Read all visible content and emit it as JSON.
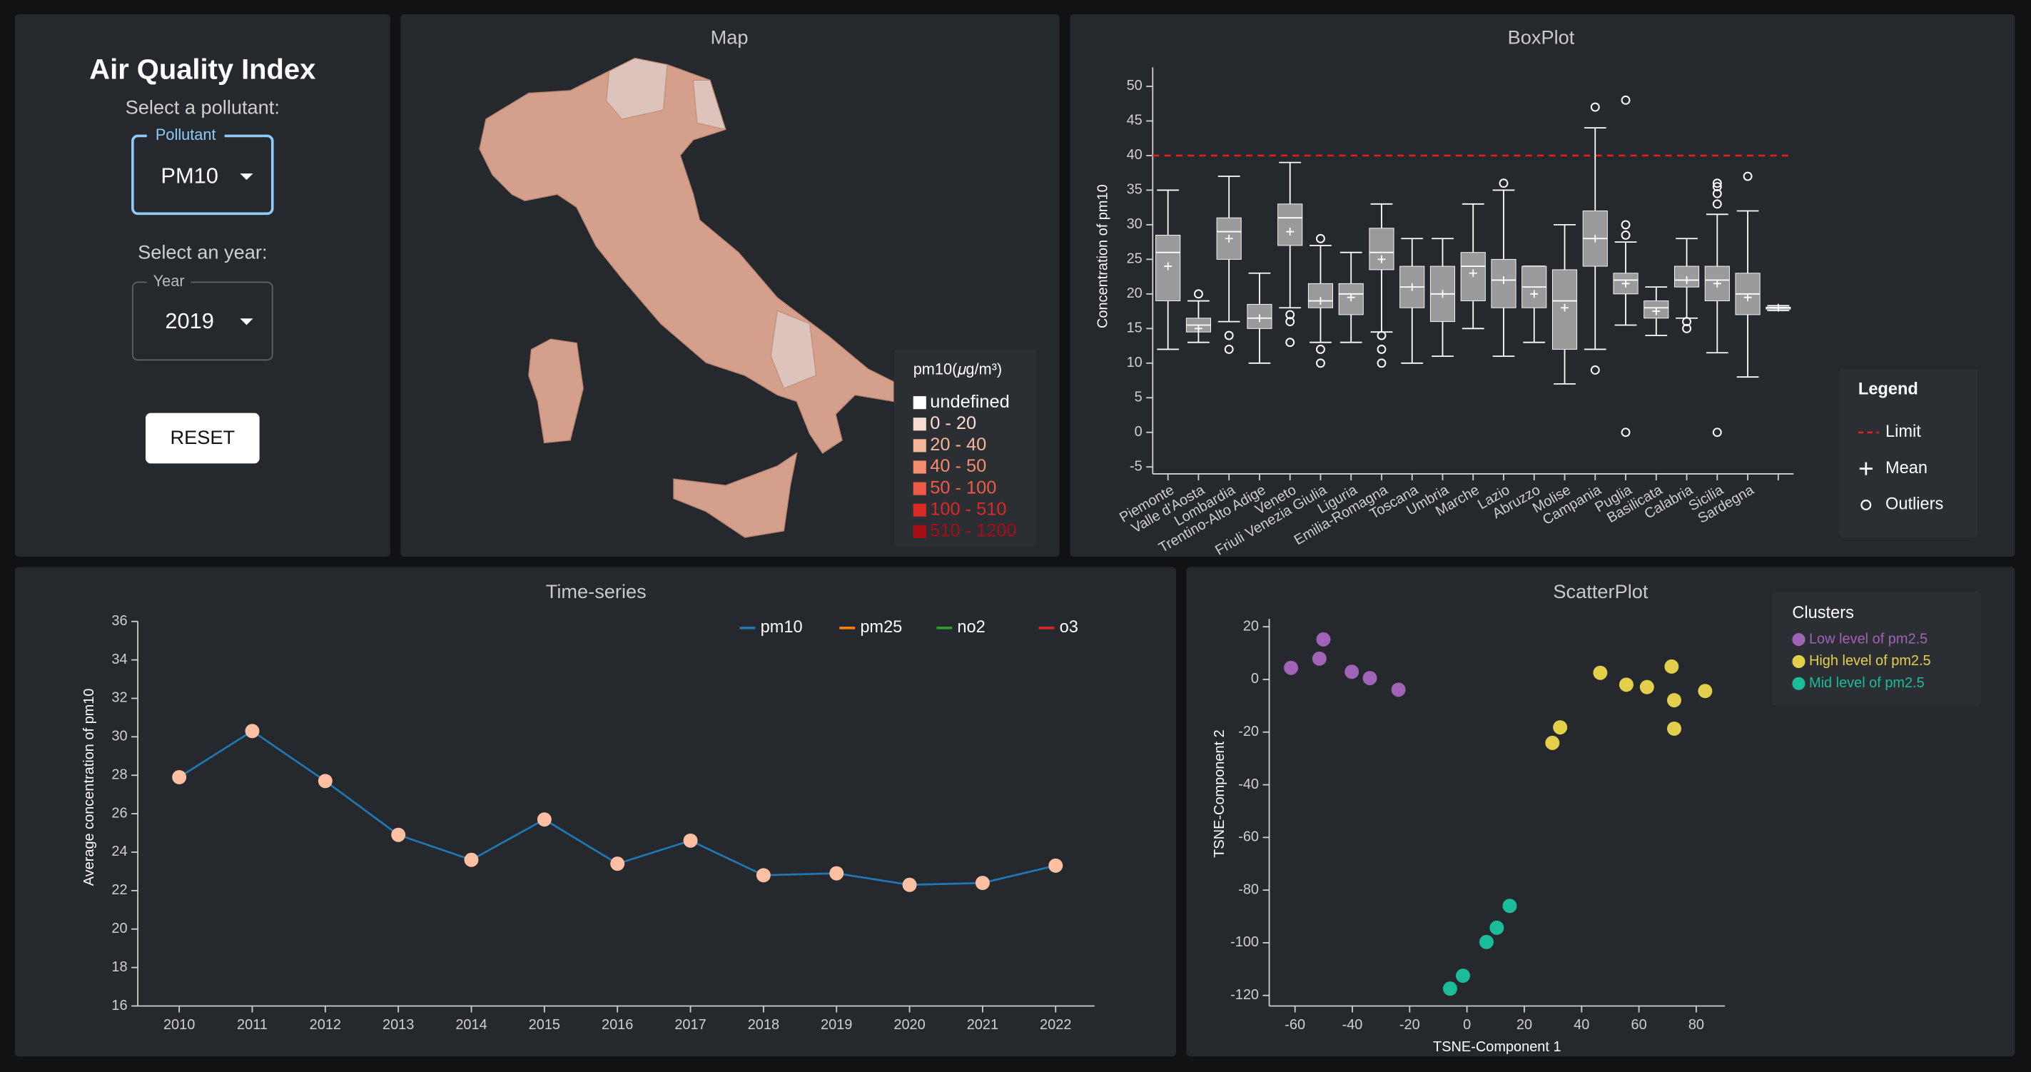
{
  "sidebar": {
    "title": "Air Quality Index",
    "pollutant_prompt": "Select a pollutant:",
    "pollutant_label": "Pollutant",
    "pollutant_value": "PM10",
    "year_prompt": "Select an year:",
    "year_label": "Year",
    "year_value": "2019",
    "reset": "RESET"
  },
  "map": {
    "title": "Map",
    "legend": {
      "title": "pm10(𝜇g/m³)",
      "items": [
        {
          "label": "undefined",
          "color": "#ffffff"
        },
        {
          "label": "0 - 20",
          "color": "#fbdcd0"
        },
        {
          "label": "20 - 40",
          "color": "#f7b59a"
        },
        {
          "label": "40 - 50",
          "color": "#f58c6e"
        },
        {
          "label": "50 - 100",
          "color": "#ef5b45"
        },
        {
          "label": "100 - 510",
          "color": "#d92a24"
        },
        {
          "label": "510 - 1200",
          "color": "#a50f15"
        }
      ]
    }
  },
  "chart_data": [
    {
      "type": "box",
      "title": "BoxPlot",
      "y_label": "Concentration of pm10",
      "ylim": [
        -6,
        52
      ],
      "yticks": [
        -5,
        0,
        5,
        10,
        15,
        20,
        25,
        30,
        35,
        40,
        45,
        50
      ],
      "limit": 40,
      "limit_color": "#e02020",
      "color": "#9a9a9a",
      "legend": {
        "title": "Legend",
        "limit": "Limit",
        "mean": "Mean",
        "outliers": "Outliers"
      },
      "categories": [
        "Piemonte",
        "Valle d'Aosta",
        "Lombardia",
        "Trentino-Alto Adige",
        "Veneto",
        "Friuli Venezia Giulia",
        "Liguria",
        "Emilia-Romagna",
        "Toscana",
        "Umbria",
        "Marche",
        "Lazio",
        "Abruzzo",
        "Molise",
        "Campania",
        "Puglia",
        "Basilicata",
        "Calabria",
        "Sicilia",
        "Sardegna",
        null
      ],
      "boxes": [
        {
          "min": 12,
          "q1": 19,
          "median": 26,
          "q3": 28.5,
          "max": 35,
          "mean": 24,
          "outliers": []
        },
        {
          "min": 13,
          "q1": 14.5,
          "median": 15.5,
          "q3": 16.5,
          "max": 19,
          "mean": 15,
          "outliers": [
            20
          ]
        },
        {
          "min": 16,
          "q1": 25,
          "median": 29,
          "q3": 31,
          "max": 37,
          "mean": 28,
          "outliers": [
            12,
            14
          ]
        },
        {
          "min": 10,
          "q1": 15,
          "median": 16.5,
          "q3": 18.5,
          "max": 23,
          "mean": 16.5,
          "outliers": []
        },
        {
          "min": 18,
          "q1": 27,
          "median": 31,
          "q3": 33,
          "max": 39,
          "mean": 29,
          "outliers": [
            13,
            16,
            17
          ]
        },
        {
          "min": 13,
          "q1": 18,
          "median": 19,
          "q3": 21.5,
          "max": 27,
          "mean": 19,
          "outliers": [
            10,
            12,
            28
          ]
        },
        {
          "min": 13,
          "q1": 17,
          "median": 20,
          "q3": 21.5,
          "max": 26,
          "mean": 19.5,
          "outliers": []
        },
        {
          "min": 14.5,
          "q1": 23.5,
          "median": 26,
          "q3": 29.5,
          "max": 33,
          "mean": 25,
          "outliers": [
            10,
            12,
            14
          ]
        },
        {
          "min": 10,
          "q1": 18,
          "median": 21,
          "q3": 24,
          "max": 28,
          "mean": 21,
          "outliers": []
        },
        {
          "min": 11,
          "q1": 16,
          "median": 20,
          "q3": 24,
          "max": 28,
          "mean": 20,
          "outliers": []
        },
        {
          "min": 15,
          "q1": 19,
          "median": 24,
          "q3": 26,
          "max": 33,
          "mean": 23,
          "outliers": []
        },
        {
          "min": 11,
          "q1": 18,
          "median": 22,
          "q3": 25,
          "max": 35,
          "mean": 22,
          "outliers": [
            36
          ]
        },
        {
          "min": 13,
          "q1": 18,
          "median": 21,
          "q3": 24,
          "max": 24,
          "mean": 20,
          "outliers": []
        },
        {
          "min": 7,
          "q1": 12,
          "median": 19,
          "q3": 23.5,
          "max": 30,
          "mean": 18,
          "outliers": []
        },
        {
          "min": 12,
          "q1": 24,
          "median": 28,
          "q3": 32,
          "max": 44,
          "mean": 28,
          "outliers": [
            9,
            47
          ]
        },
        {
          "min": 15.5,
          "q1": 20,
          "median": 22,
          "q3": 23,
          "max": 27.5,
          "mean": 21.5,
          "outliers": [
            0,
            28.5,
            30,
            48
          ]
        },
        {
          "min": 14,
          "q1": 16.5,
          "median": 18,
          "q3": 19,
          "max": 21,
          "mean": 17.5,
          "outliers": []
        },
        {
          "min": 16.5,
          "q1": 21,
          "median": 22,
          "q3": 24,
          "max": 28,
          "mean": 22,
          "outliers": [
            15,
            16
          ]
        },
        {
          "min": 11.5,
          "q1": 19,
          "median": 22,
          "q3": 24,
          "max": 31.5,
          "mean": 21.5,
          "outliers": [
            0,
            33,
            34.5,
            35.5,
            36
          ]
        },
        {
          "min": 8,
          "q1": 17,
          "median": 20,
          "q3": 23,
          "max": 32,
          "mean": 19.5,
          "outliers": [
            37
          ]
        },
        {
          "min": 17.6,
          "q1": 17.8,
          "median": 18,
          "q3": 18.1,
          "max": 18.3,
          "mean": 18,
          "outliers": []
        }
      ]
    },
    {
      "type": "line",
      "title": "Time-series",
      "y_label": "Average concentration of pm10",
      "ylim": [
        16,
        36
      ],
      "yticks": [
        16,
        18,
        20,
        22,
        24,
        26,
        28,
        30,
        32,
        34,
        36
      ],
      "categories": [
        "2010",
        "2011",
        "2012",
        "2013",
        "2014",
        "2015",
        "2016",
        "2017",
        "2018",
        "2019",
        "2020",
        "2021",
        "2022"
      ],
      "point_color": "#ffbfa3",
      "series": [
        {
          "name": "pm10",
          "color": "#1f77b4",
          "values": [
            27.9,
            30.3,
            27.7,
            24.9,
            23.6,
            25.7,
            23.4,
            24.6,
            22.8,
            22.9,
            22.3,
            22.4,
            23.3
          ]
        },
        {
          "name": "pm25",
          "color": "#ff7f0e"
        },
        {
          "name": "no2",
          "color": "#2ca02c"
        },
        {
          "name": "o3",
          "color": "#d62728"
        }
      ]
    },
    {
      "type": "scatter",
      "title": "ScatterPlot",
      "x_label": "TSNE-Component 1",
      "y_label": "TSNE-Component 2",
      "legend_title": "Clusters",
      "xlim": [
        -69,
        90
      ],
      "ylim": [
        -124,
        23
      ],
      "xticks": [
        -60,
        -40,
        -20,
        0,
        20,
        40,
        60,
        80
      ],
      "yticks": [
        -120,
        -100,
        -80,
        -60,
        -40,
        -20,
        0,
        20
      ],
      "series": [
        {
          "name": "Low level of pm2.5",
          "color": "#a063b5",
          "x": [
            -61.4,
            -51.5,
            -50.1,
            -40.2,
            -33.9,
            -23.9
          ],
          "values": [
            4.4,
            7.9,
            15.2,
            2.9,
            0.5,
            -3.9
          ]
        },
        {
          "name": "High level of pm2.5",
          "color": "#e3cf4a",
          "x": [
            29.8,
            32.5,
            46.5,
            55.6,
            62.8,
            71.4,
            72.3,
            72.3,
            83.1
          ],
          "values": [
            -24.1,
            -18.2,
            2.5,
            -2,
            -2.9,
            4.9,
            -7.9,
            -18.7,
            -4.4
          ]
        },
        {
          "name": "Mid level of pm2.5",
          "color": "#1abc9c",
          "x": [
            -5.9,
            -1.4,
            6.8,
            10.4,
            14.9
          ],
          "values": [
            -117.4,
            -112.5,
            -99.7,
            -94.3,
            -86
          ]
        }
      ]
    }
  ]
}
